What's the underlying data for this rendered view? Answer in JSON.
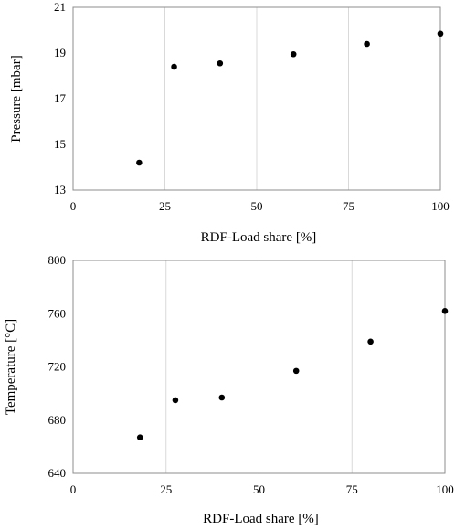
{
  "chart_data": [
    {
      "type": "scatter",
      "xlabel": "RDF-Load share [%]",
      "ylabel": "Pressure [mbar]",
      "xlim": [
        0,
        100
      ],
      "ylim": [
        13,
        21
      ],
      "xticks": [
        0,
        25,
        50,
        75,
        100
      ],
      "yticks": [
        13,
        15,
        17,
        19,
        21
      ],
      "grid": "vertical",
      "points": [
        {
          "x": 18,
          "y": 14.2
        },
        {
          "x": 27.5,
          "y": 18.4
        },
        {
          "x": 40,
          "y": 18.55
        },
        {
          "x": 60,
          "y": 18.95
        },
        {
          "x": 80,
          "y": 19.4
        },
        {
          "x": 100,
          "y": 19.85
        }
      ]
    },
    {
      "type": "scatter",
      "xlabel": "RDF-Load share [%]",
      "ylabel": "Temperature [°C]",
      "xlim": [
        0,
        100
      ],
      "ylim": [
        640,
        800
      ],
      "xticks": [
        0,
        25,
        50,
        75,
        100
      ],
      "yticks": [
        640,
        680,
        720,
        760,
        800
      ],
      "grid": "vertical",
      "points": [
        {
          "x": 18,
          "y": 667
        },
        {
          "x": 27.5,
          "y": 695
        },
        {
          "x": 40,
          "y": 697
        },
        {
          "x": 60,
          "y": 717
        },
        {
          "x": 80,
          "y": 739
        },
        {
          "x": 100,
          "y": 762
        }
      ]
    }
  ]
}
